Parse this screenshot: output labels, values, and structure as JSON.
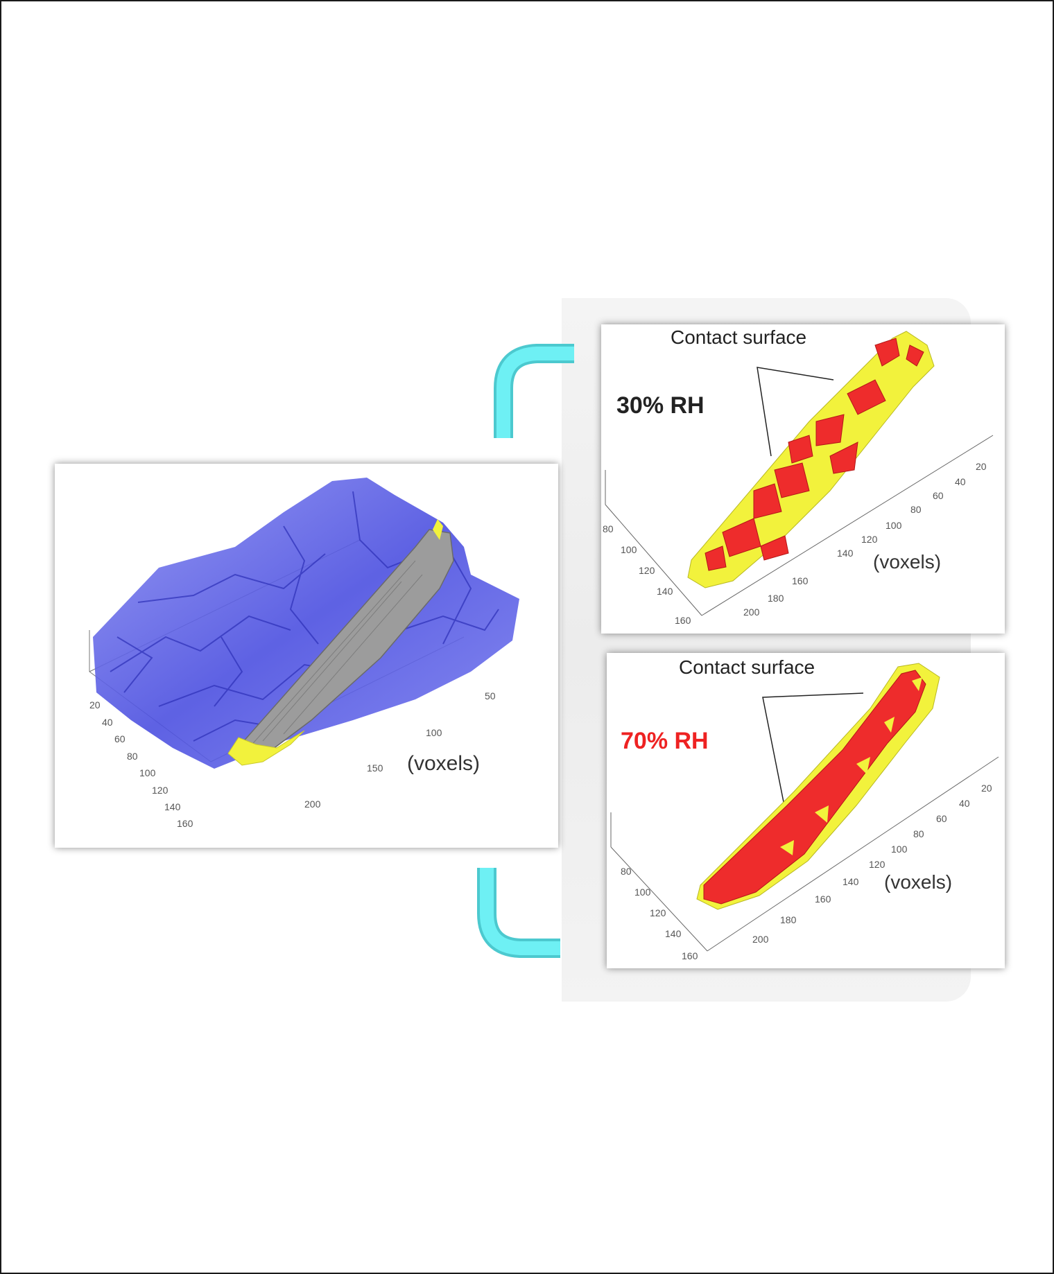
{
  "colors": {
    "connector": "#5ce6ec",
    "pore": "#4a4ee6",
    "grain": "#9a9a9a",
    "contact_yellow": "#f2f23c",
    "contact_red": "#ee2c2c",
    "rh70_text": "#ee2222",
    "rh30_text": "#222222"
  },
  "main_panel": {
    "voxels_label": "(voxels)",
    "left_ticks": [
      "20",
      "40",
      "60",
      "80",
      "100",
      "120",
      "140",
      "160"
    ],
    "right_ticks": [
      "50",
      "100",
      "150",
      "200"
    ]
  },
  "panel_30": {
    "title": "Contact surface",
    "rh_label": "30% RH",
    "voxels_label": "(voxels)",
    "left_ticks": [
      "80",
      "100",
      "120",
      "140",
      "160"
    ],
    "right_ticks": [
      "20",
      "40",
      "60",
      "80",
      "100",
      "120",
      "140",
      "160",
      "180",
      "200"
    ]
  },
  "panel_70": {
    "title": "Contact surface",
    "rh_label": "70% RH",
    "voxels_label": "(voxels)",
    "left_ticks": [
      "80",
      "100",
      "120",
      "140",
      "160"
    ],
    "right_ticks": [
      "20",
      "40",
      "60",
      "80",
      "100",
      "120",
      "140",
      "160",
      "180",
      "200"
    ]
  }
}
